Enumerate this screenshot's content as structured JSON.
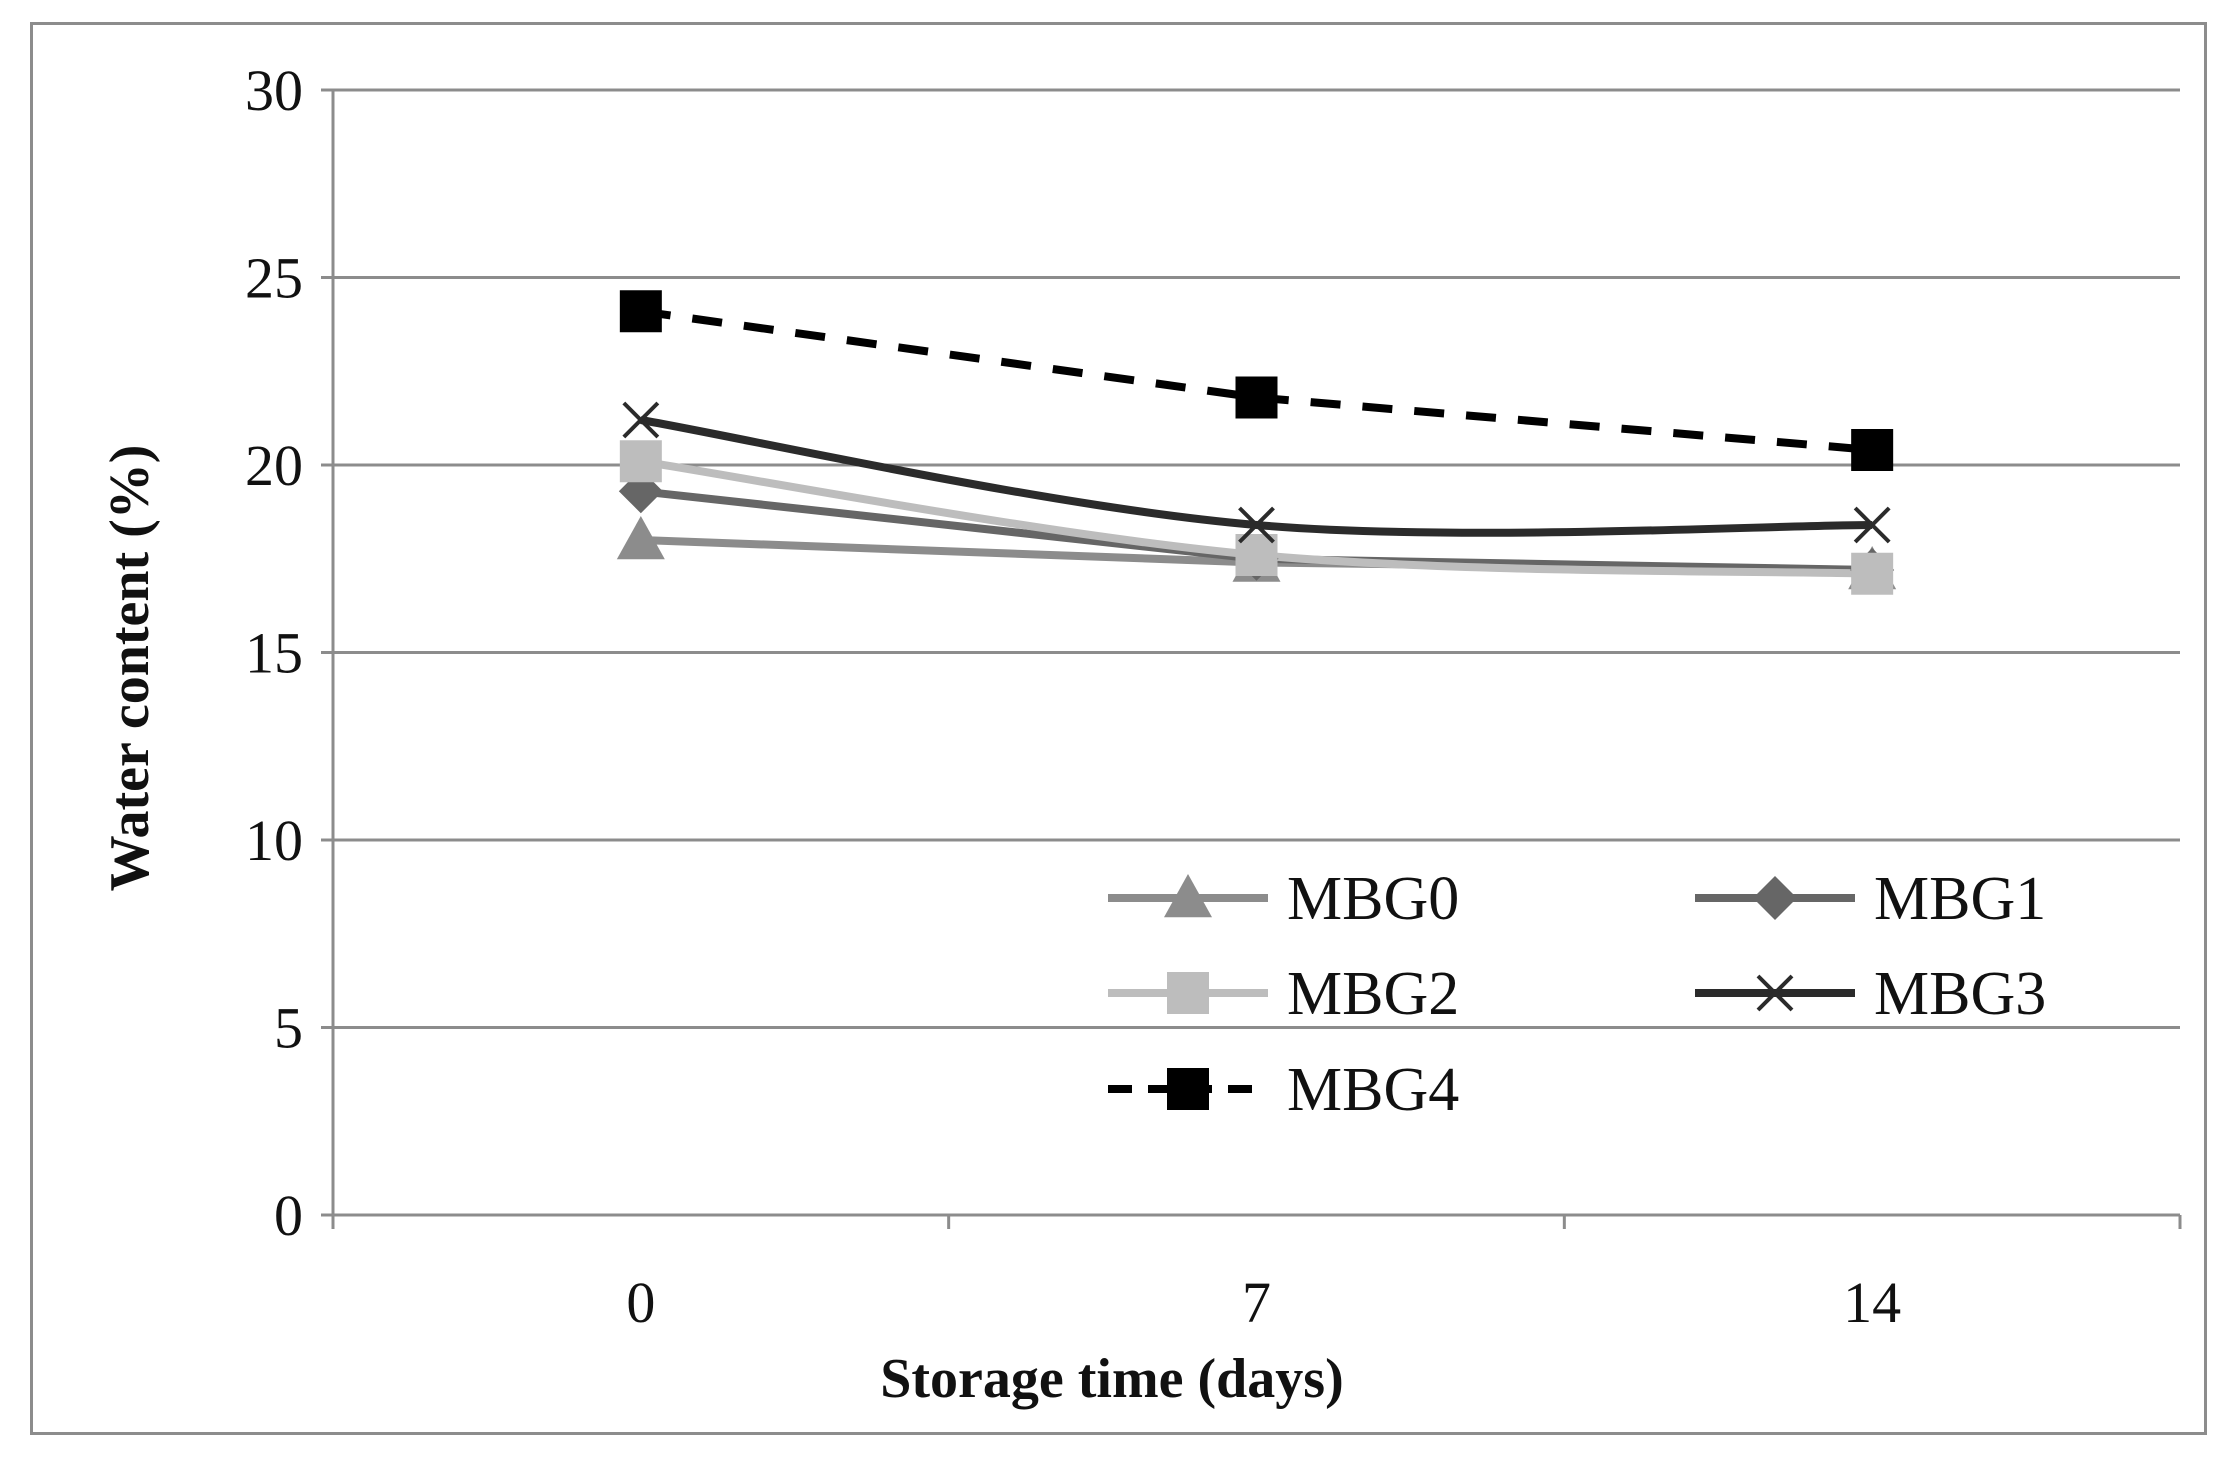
{
  "chart_data": {
    "type": "line",
    "title": "",
    "xlabel": "Storage time (days)",
    "ylabel": "Water content (%)",
    "x": [
      0,
      7,
      14
    ],
    "categories": [
      "0",
      "7",
      "14"
    ],
    "ylim": [
      0,
      30
    ],
    "yticks": [
      "0",
      "5",
      "10",
      "15",
      "20",
      "25",
      "30"
    ],
    "grid": true,
    "legend_position": "bottom-right",
    "series": [
      {
        "name": "MBG0",
        "values": [
          18.0,
          17.4,
          17.2
        ],
        "color": "#8c8c8c",
        "marker": "triangle",
        "dash": "solid",
        "smooth": false
      },
      {
        "name": "MBG1",
        "values": [
          19.3,
          17.5,
          17.2
        ],
        "color": "#666666",
        "marker": "diamond",
        "dash": "solid",
        "smooth": false
      },
      {
        "name": "MBG2",
        "values": [
          20.1,
          17.6,
          17.1
        ],
        "color": "#bdbdbd",
        "marker": "square",
        "dash": "solid",
        "smooth": true
      },
      {
        "name": "MBG3",
        "values": [
          21.2,
          18.4,
          18.4
        ],
        "color": "#2b2b2b",
        "marker": "x",
        "dash": "solid",
        "smooth": true
      },
      {
        "name": "MBG4",
        "values": [
          24.1,
          21.8,
          20.4
        ],
        "color": "#000000",
        "marker": "square",
        "dash": "dashed",
        "smooth": false
      }
    ]
  }
}
